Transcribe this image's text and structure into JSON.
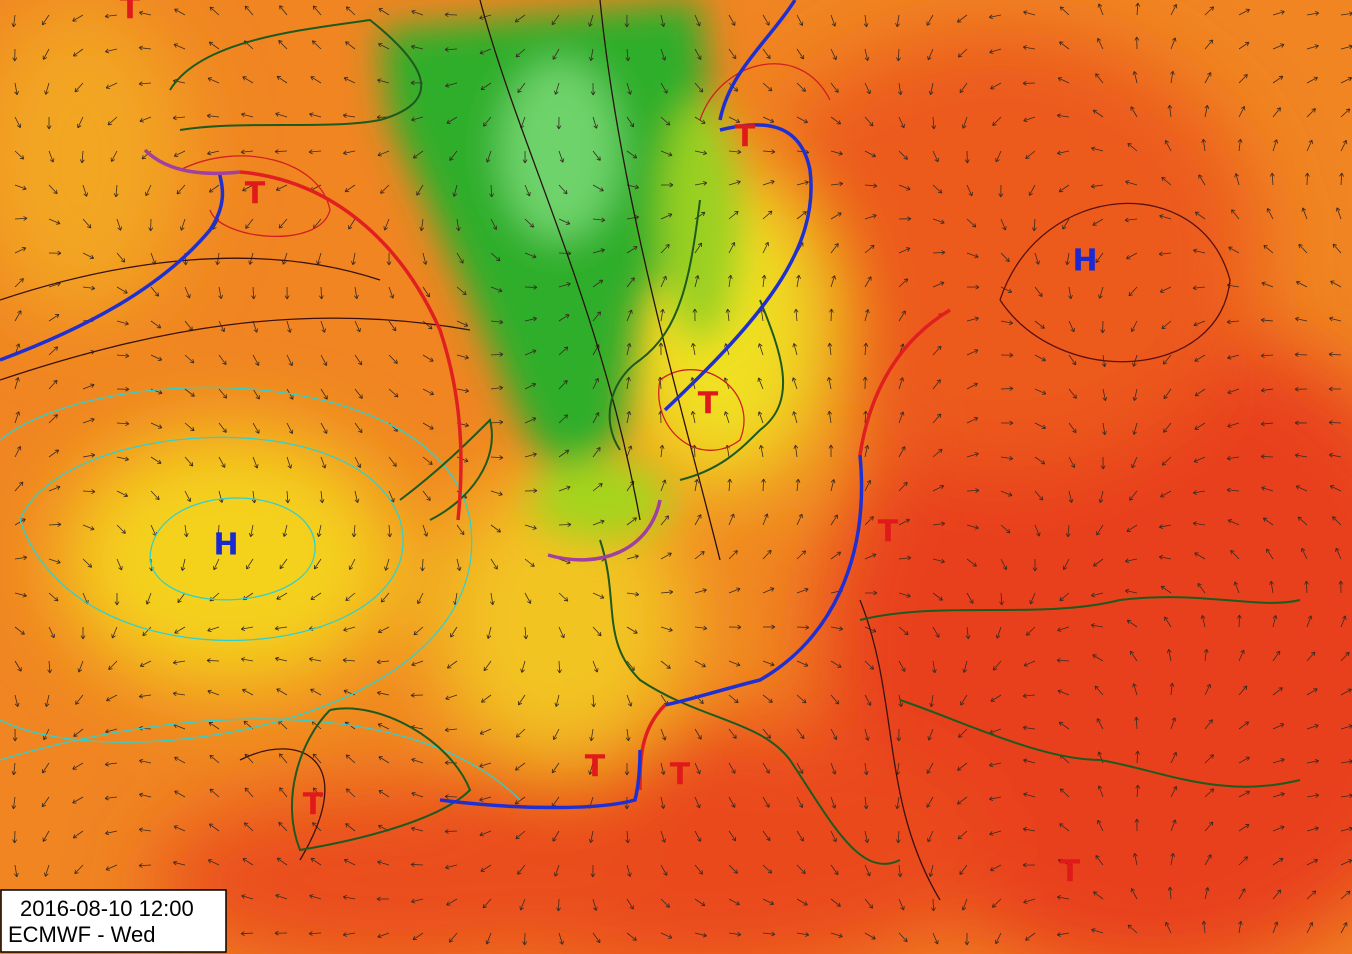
{
  "map": {
    "timestamp": "2016-08-10 12:00",
    "model": "ECMWF - Wed",
    "labels": [
      {
        "text": "T",
        "kind": "low"
      },
      {
        "text": "T",
        "kind": "low"
      },
      {
        "text": "T",
        "kind": "low"
      },
      {
        "text": "T",
        "kind": "low"
      },
      {
        "text": "T",
        "kind": "low"
      },
      {
        "text": "T",
        "kind": "low"
      },
      {
        "text": "T",
        "kind": "low"
      },
      {
        "text": "T",
        "kind": "low"
      },
      {
        "text": "T",
        "kind": "low"
      },
      {
        "text": "H",
        "kind": "high"
      },
      {
        "text": "H",
        "kind": "high"
      }
    ]
  }
}
